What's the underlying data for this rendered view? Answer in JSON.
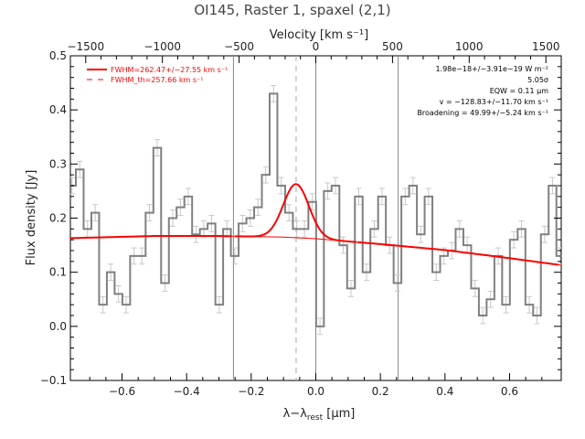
{
  "chart_data": {
    "type": "line",
    "title": "OI145, Raster 1, spaxel (2,1)",
    "xlabel": "λ−λ_rest [μm]",
    "xlabel_parts": {
      "main": "λ−λ",
      "sub": "rest",
      "unit": " [μm]"
    },
    "ylabel": "Flux density [Jy]",
    "top_axis_label": "Velocity [km s⁻¹]",
    "xlim": [
      -0.76,
      0.76
    ],
    "ylim": [
      -0.1,
      0.5
    ],
    "top_xlim": [
      -1600,
      1600
    ],
    "x_ticks": [
      -0.6,
      -0.4,
      -0.2,
      0.0,
      0.2,
      0.4,
      0.6
    ],
    "x_tick_labels": [
      "−0.6",
      "−0.4",
      "−0.2",
      "0.0",
      "0.2",
      "0.4",
      "0.6"
    ],
    "y_ticks": [
      -0.1,
      0.0,
      0.1,
      0.2,
      0.3,
      0.4,
      0.5
    ],
    "y_tick_labels": [
      "−0.1",
      "0.0",
      "0.1",
      "0.2",
      "0.3",
      "0.4",
      "0.5"
    ],
    "top_ticks": [
      -1500,
      -1000,
      -500,
      0,
      500,
      1000,
      1500
    ],
    "top_tick_labels": [
      "−1500",
      "−1000",
      "−500",
      "0",
      "500",
      "1000",
      "1500"
    ],
    "vertical_lines": [
      -0.255,
      0.0,
      0.255
    ],
    "dashed_vline": -0.061,
    "legend": [
      {
        "label": "FWHM=262.47+/−27.55 km s⁻¹",
        "style": "solid"
      },
      {
        "label": "FWHM_th=257.66 km s⁻¹",
        "style": "dashed"
      }
    ],
    "annotations": [
      "1.98e−18+/−3.91e−19 W m⁻²",
      "5.05σ",
      "EQW = 0.11 μm",
      "v = −128.83+/−11.70 km s⁻¹",
      "Broadening = 49.99+/−5.24 km s⁻¹"
    ],
    "series": [
      {
        "style": "steps",
        "color": "#808080",
        "x": [
          -0.755,
          -0.731,
          -0.707,
          -0.683,
          -0.659,
          -0.635,
          -0.611,
          -0.587,
          -0.563,
          -0.539,
          -0.515,
          -0.491,
          -0.467,
          -0.443,
          -0.419,
          -0.395,
          -0.371,
          -0.347,
          -0.323,
          -0.299,
          -0.275,
          -0.251,
          -0.227,
          -0.203,
          -0.179,
          -0.155,
          -0.131,
          -0.107,
          -0.083,
          -0.059,
          -0.035,
          -0.011,
          0.013,
          0.037,
          0.061,
          0.085,
          0.109,
          0.133,
          0.157,
          0.181,
          0.205,
          0.229,
          0.253,
          0.277,
          0.301,
          0.325,
          0.349,
          0.373,
          0.397,
          0.421,
          0.445,
          0.469,
          0.493,
          0.517,
          0.541,
          0.565,
          0.589,
          0.613,
          0.637,
          0.661,
          0.685,
          0.709,
          0.733,
          0.757
        ],
        "values": [
          0.26,
          0.29,
          0.18,
          0.21,
          0.04,
          0.1,
          0.06,
          0.04,
          0.13,
          0.13,
          0.21,
          0.33,
          0.08,
          0.2,
          0.22,
          0.24,
          0.17,
          0.18,
          0.19,
          0.04,
          0.18,
          0.13,
          0.19,
          0.2,
          0.22,
          0.28,
          0.43,
          0.26,
          0.21,
          0.18,
          0.18,
          0.23,
          0.0,
          0.25,
          0.26,
          0.15,
          0.07,
          0.24,
          0.1,
          0.18,
          0.24,
          0.15,
          0.08,
          0.24,
          0.26,
          0.17,
          0.24,
          0.1,
          0.13,
          0.14,
          0.18,
          0.15,
          0.07,
          0.02,
          0.05,
          0.13,
          0.04,
          0.16,
          0.18,
          0.04,
          0.02,
          0.17,
          0.26,
          0.13
        ],
        "errors": 0.015
      },
      {
        "style": "line",
        "color": "#ff0000",
        "name": "Continuum fit",
        "x": [
          -0.76,
          -0.5,
          -0.3,
          -0.1,
          0.0,
          0.2,
          0.4,
          0.6,
          0.76
        ],
        "values": [
          0.163,
          0.167,
          0.167,
          0.165,
          0.162,
          0.152,
          0.141,
          0.126,
          0.113
        ]
      },
      {
        "style": "line",
        "color": "#ff0000",
        "name": "Gaussian fit",
        "gaussian": {
          "center": -0.061,
          "amplitude": 0.099,
          "sigma": 0.0395
        },
        "x_range": [
          -0.25,
          0.13
        ]
      }
    ]
  }
}
